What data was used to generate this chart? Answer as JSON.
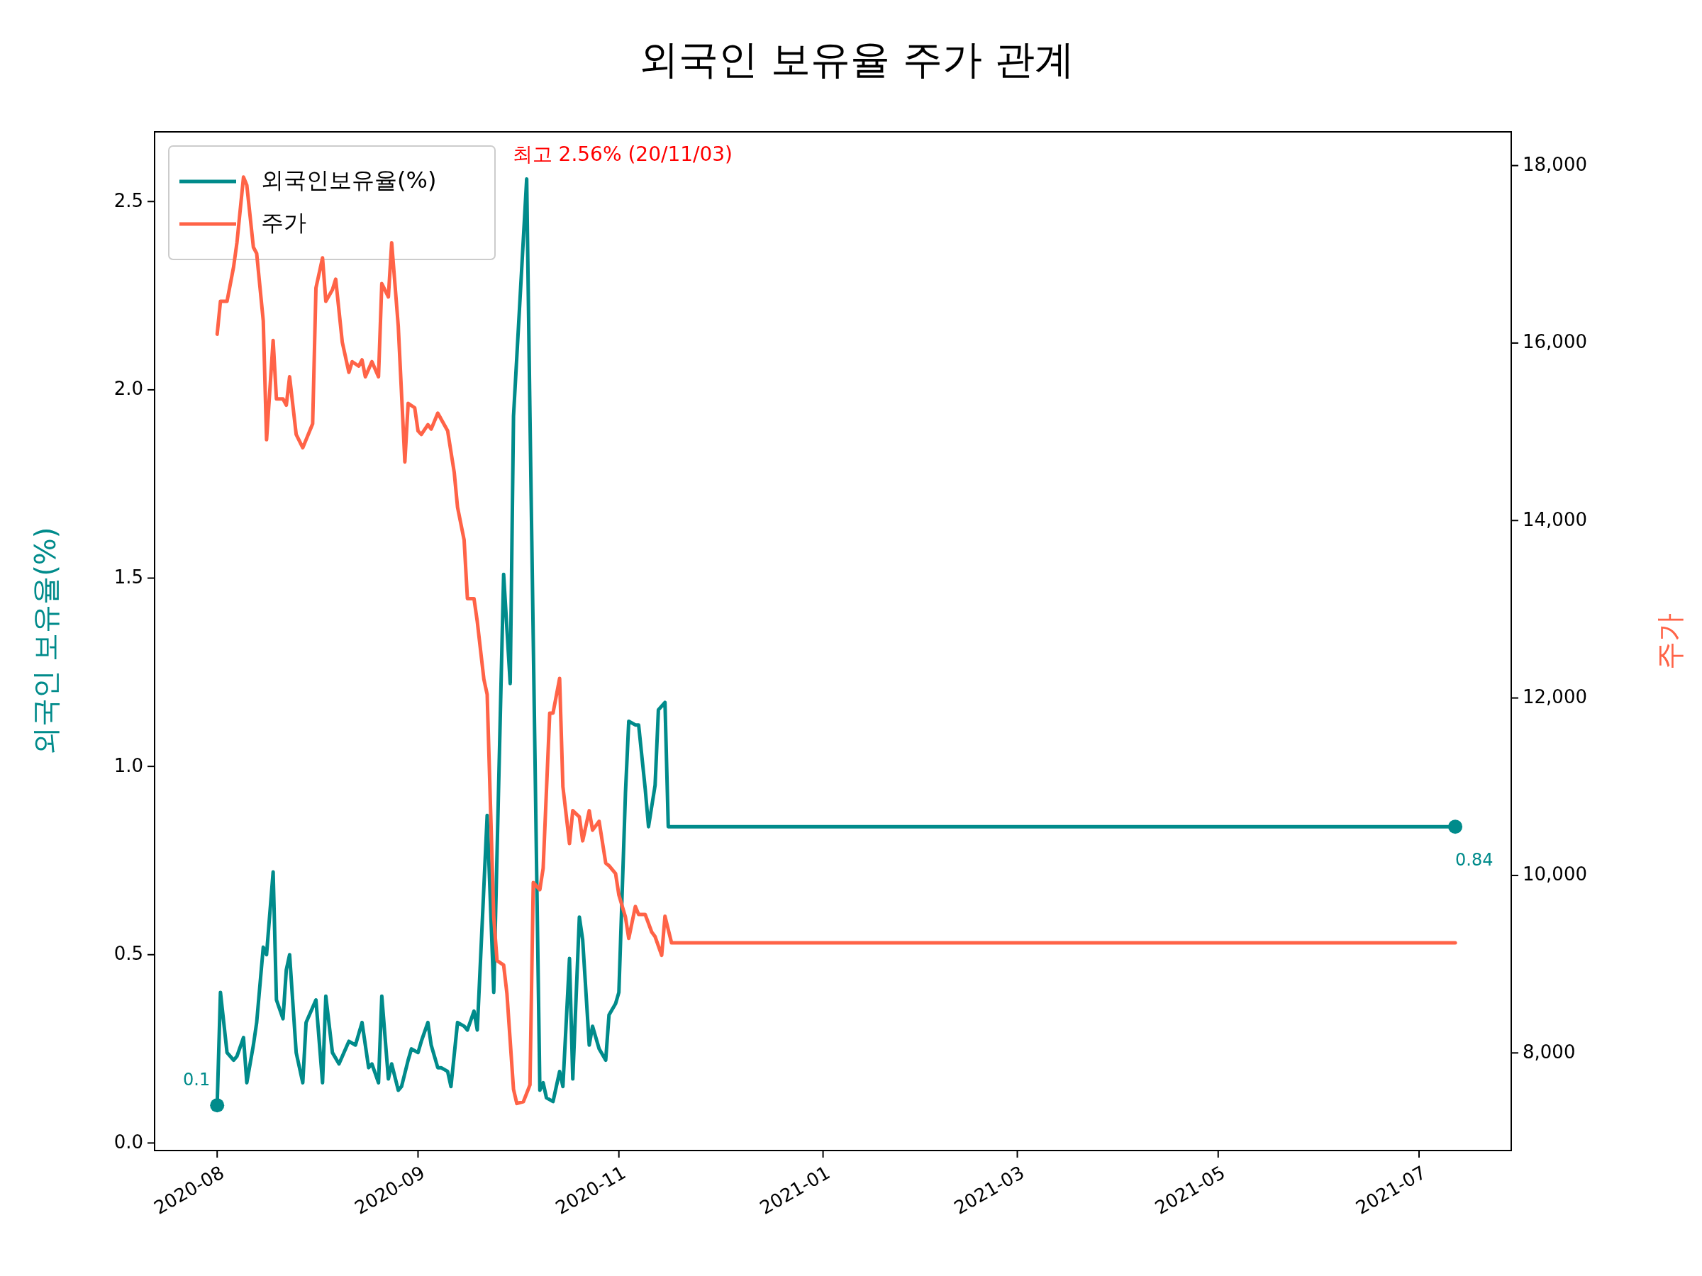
{
  "chart_data": {
    "type": "line",
    "title": "외국인 보유율 주가 관계",
    "ylabel": "외국인 보유율(%)",
    "y2label": "주가",
    "xlim": [
      "2020-07-13",
      "2021-08-29"
    ],
    "xticks": [
      {
        "value": "2020-08-01",
        "label": "2020-08"
      },
      {
        "value": "2020-10-01",
        "label": "2020-09"
      },
      {
        "value": "2020-12-01",
        "label": "2020-11"
      },
      {
        "value": "2021-02-01",
        "label": "2021-01"
      },
      {
        "value": "2021-04-01",
        "label": "2021-03"
      },
      {
        "value": "2021-06-01",
        "label": "2021-05"
      },
      {
        "value": "2021-08-01",
        "label": "2021-07"
      }
    ],
    "ylim": [
      -0.02,
      2.685
    ],
    "yticks": [
      {
        "value": 0,
        "label": "0.0"
      },
      {
        "value": 0.5,
        "label": "0.5"
      },
      {
        "value": 1,
        "label": "1.0"
      },
      {
        "value": 1.5,
        "label": "1.5"
      },
      {
        "value": 2,
        "label": "2.0"
      },
      {
        "value": 2.5,
        "label": "2.5"
      }
    ],
    "y2lim": [
      6900,
      18380
    ],
    "y2ticks": [
      {
        "value": 8000,
        "label": "8,000"
      },
      {
        "value": 10000,
        "label": "10,000"
      },
      {
        "value": 12000,
        "label": "12,000"
      },
      {
        "value": 14000,
        "label": "14,000"
      },
      {
        "value": 16000,
        "label": "16,000"
      },
      {
        "value": 18000,
        "label": "18,000"
      }
    ],
    "legend": "top left",
    "grid": false,
    "series": [
      {
        "name": "외국인보유율(%)",
        "color": "#008b8b",
        "x": [
          "2020-08-01",
          "2020-08-02",
          "2020-08-04",
          "2020-08-06",
          "2020-08-07",
          "2020-08-09",
          "2020-08-10",
          "2020-08-12",
          "2020-08-13",
          "2020-08-15",
          "2020-08-16",
          "2020-08-18",
          "2020-08-19",
          "2020-08-21",
          "2020-08-22",
          "2020-08-23",
          "2020-08-25",
          "2020-08-27",
          "2020-08-28",
          "2020-08-31",
          "2020-09-02",
          "2020-09-03",
          "2020-09-05",
          "2020-09-07",
          "2020-09-08",
          "2020-09-10",
          "2020-09-12",
          "2020-09-14",
          "2020-09-16",
          "2020-09-17",
          "2020-09-19",
          "2020-09-20",
          "2020-09-22",
          "2020-09-23",
          "2020-09-25",
          "2020-09-26",
          "2020-09-28",
          "2020-09-29",
          "2020-10-01",
          "2020-10-02",
          "2020-10-04",
          "2020-10-05",
          "2020-10-07",
          "2020-10-08",
          "2020-10-10",
          "2020-10-11",
          "2020-10-13",
          "2020-10-15",
          "2020-10-16",
          "2020-10-18",
          "2020-10-19",
          "2020-10-22",
          "2020-10-24",
          "2020-10-27",
          "2020-10-29",
          "2020-10-30",
          "2020-11-03",
          "2020-11-04",
          "2020-11-07",
          "2020-11-08",
          "2020-11-09",
          "2020-11-11",
          "2020-11-13",
          "2020-11-14",
          "2020-11-16",
          "2020-11-17",
          "2020-11-19",
          "2020-11-20",
          "2020-11-22",
          "2020-11-23",
          "2020-11-25",
          "2020-11-27",
          "2020-11-28",
          "2020-11-30",
          "2020-12-01",
          "2020-12-03",
          "2020-12-04",
          "2020-12-06",
          "2020-12-07",
          "2020-12-09",
          "2020-12-10",
          "2020-12-12",
          "2020-12-13",
          "2020-12-15",
          "2020-12-16",
          "2021-08-12"
        ],
        "values": [
          0.1,
          0.4,
          0.24,
          0.22,
          0.23,
          0.28,
          0.16,
          0.26,
          0.32,
          0.52,
          0.5,
          0.72,
          0.38,
          0.33,
          0.46,
          0.5,
          0.24,
          0.16,
          0.32,
          0.38,
          0.16,
          0.39,
          0.24,
          0.21,
          0.23,
          0.27,
          0.26,
          0.32,
          0.2,
          0.21,
          0.16,
          0.39,
          0.17,
          0.21,
          0.14,
          0.15,
          0.22,
          0.25,
          0.24,
          0.27,
          0.32,
          0.26,
          0.2,
          0.2,
          0.19,
          0.15,
          0.32,
          0.31,
          0.3,
          0.35,
          0.3,
          0.87,
          0.4,
          1.51,
          1.22,
          1.93,
          2.56,
          1.93,
          0.14,
          0.16,
          0.12,
          0.11,
          0.19,
          0.15,
          0.49,
          0.17,
          0.6,
          0.54,
          0.26,
          0.31,
          0.25,
          0.22,
          0.34,
          0.37,
          0.4,
          0.93,
          1.12,
          1.11,
          1.11,
          0.94,
          0.84,
          0.95,
          1.15,
          1.17,
          0.84,
          0.84
        ]
      },
      {
        "name": "주가",
        "color": "#ff6347",
        "axis": "y2",
        "x": [
          "2020-08-01",
          "2020-08-02",
          "2020-08-04",
          "2020-08-06",
          "2020-08-07",
          "2020-08-09",
          "2020-08-10",
          "2020-08-12",
          "2020-08-13",
          "2020-08-15",
          "2020-08-16",
          "2020-08-18",
          "2020-08-19",
          "2020-08-21",
          "2020-08-22",
          "2020-08-23",
          "2020-08-25",
          "2020-08-27",
          "2020-08-28",
          "2020-08-30",
          "2020-08-31",
          "2020-09-02",
          "2020-09-03",
          "2020-09-05",
          "2020-09-06",
          "2020-09-08",
          "2020-09-10",
          "2020-09-11",
          "2020-09-13",
          "2020-09-14",
          "2020-09-15",
          "2020-09-17",
          "2020-09-19",
          "2020-09-20",
          "2020-09-22",
          "2020-09-23",
          "2020-09-25",
          "2020-09-27",
          "2020-09-28",
          "2020-09-30",
          "2020-10-01",
          "2020-10-02",
          "2020-10-04",
          "2020-10-05",
          "2020-10-07",
          "2020-10-10",
          "2020-10-12",
          "2020-10-13",
          "2020-10-15",
          "2020-10-16",
          "2020-10-18",
          "2020-10-19",
          "2020-10-21",
          "2020-10-22",
          "2020-10-24",
          "2020-10-25",
          "2020-10-27",
          "2020-10-28",
          "2020-10-30",
          "2020-10-31",
          "2020-11-02",
          "2020-11-04",
          "2020-11-05",
          "2020-11-07",
          "2020-11-08",
          "2020-11-10",
          "2020-11-11",
          "2020-11-13",
          "2020-11-14",
          "2020-11-16",
          "2020-11-17",
          "2020-11-19",
          "2020-11-20",
          "2020-11-22",
          "2020-11-23",
          "2020-11-25",
          "2020-11-27",
          "2020-11-28",
          "2020-11-30",
          "2020-12-01",
          "2020-12-03",
          "2020-12-04",
          "2020-12-06",
          "2020-12-07",
          "2020-12-09",
          "2020-12-11",
          "2020-12-12",
          "2020-12-14",
          "2020-12-15",
          "2020-12-17",
          "2021-08-12"
        ],
        "values": [
          16100,
          16470,
          16470,
          16860,
          17130,
          17870,
          17780,
          17080,
          17010,
          16250,
          14910,
          16030,
          15370,
          15370,
          15300,
          15620,
          14970,
          14820,
          14910,
          15090,
          16620,
          16960,
          16470,
          16600,
          16720,
          16010,
          15670,
          15790,
          15740,
          15810,
          15620,
          15790,
          15620,
          16670,
          16520,
          17130,
          16190,
          14660,
          15320,
          15270,
          15010,
          14970,
          15080,
          15030,
          15210,
          15010,
          14540,
          14150,
          13780,
          13120,
          13120,
          12860,
          12210,
          12040,
          9530,
          9040,
          8990,
          8670,
          7590,
          7430,
          7450,
          7640,
          9920,
          9840,
          10080,
          11830,
          11830,
          12220,
          11000,
          10360,
          10730,
          10660,
          10390,
          10730,
          10510,
          10610,
          10140,
          10110,
          10020,
          9780,
          9530,
          9290,
          9650,
          9560,
          9560,
          9360,
          9310,
          9100,
          9540,
          9240,
          9240
        ]
      },
      {
        "type": "scatter",
        "color": "#008b8b",
        "marker": "circle",
        "x": [
          "2020-08-01",
          "2021-08-12"
        ],
        "values": [
          0.1,
          0.84
        ]
      }
    ],
    "annotations": [
      {
        "text": "0.1",
        "x": "2020-08-01",
        "y": 0.1
      },
      {
        "text": "0.84",
        "x": "2021-08-12",
        "y": 0.84
      },
      {
        "text": "최고 2.56% (20/11/03)",
        "x": "2020-11-03",
        "y": 2.56
      }
    ]
  }
}
